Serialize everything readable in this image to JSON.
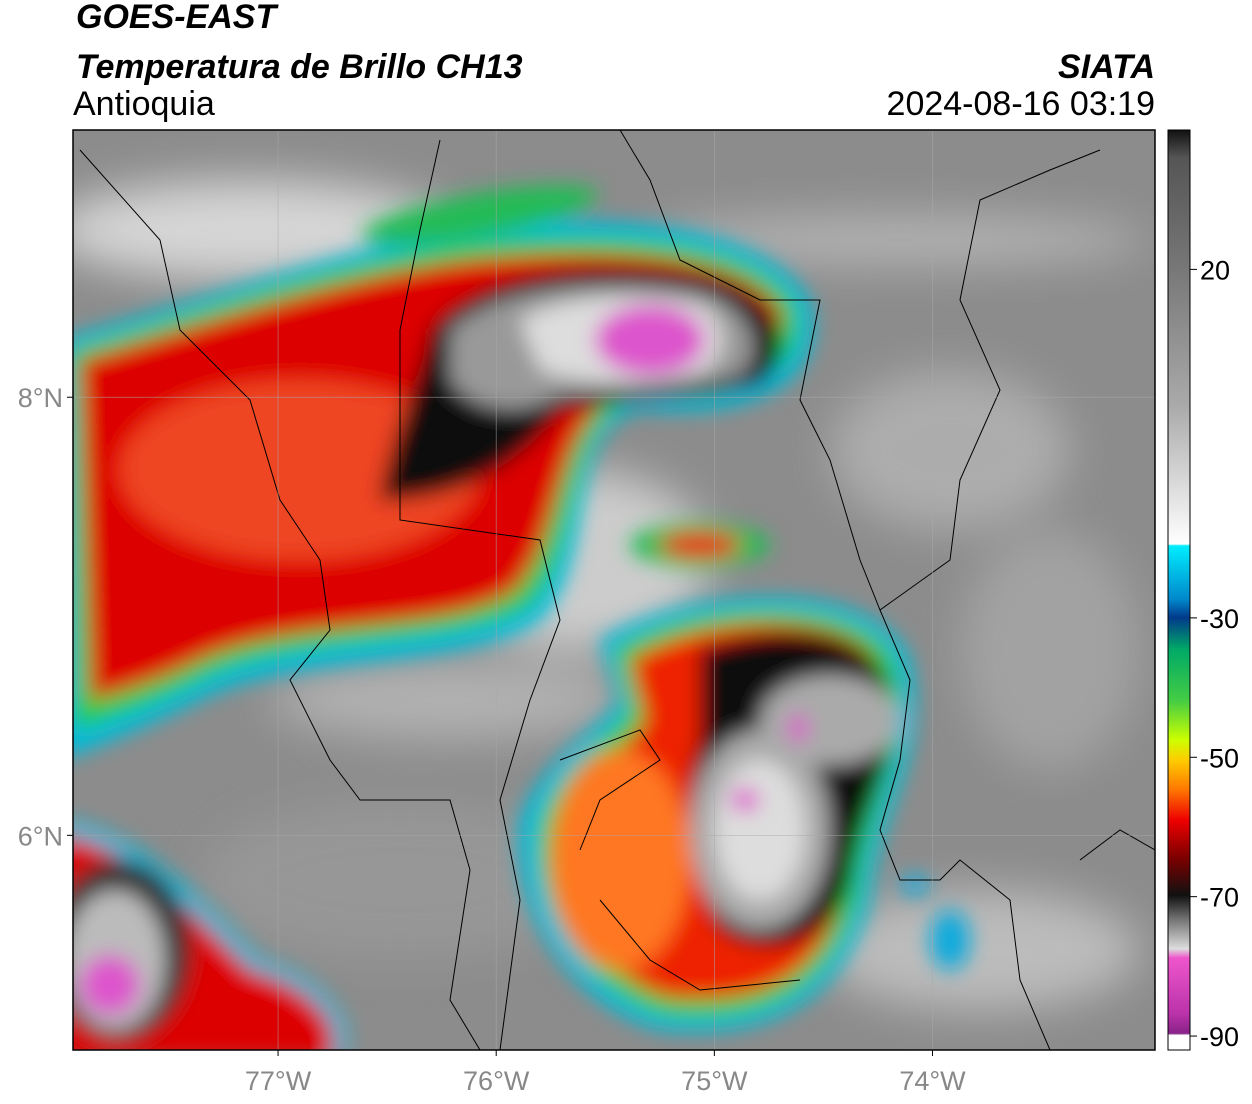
{
  "header": {
    "title": "GOES-EAST",
    "subtitle": "Temperatura de Brillo CH13",
    "region": "Antioquia",
    "source": "SIATA",
    "datetime": "2024-08-16 03:19"
  },
  "map": {
    "xlim": [
      -77.94,
      -72.98
    ],
    "ylim": [
      5.02,
      9.22
    ],
    "xticks": [
      {
        "value": -77,
        "label": "77°W"
      },
      {
        "value": -76,
        "label": "76°W"
      },
      {
        "value": -75,
        "label": "75°W"
      },
      {
        "value": -74,
        "label": "74°W"
      }
    ],
    "yticks": [
      {
        "value": 8,
        "label": "8°N"
      },
      {
        "value": 6,
        "label": "6°N"
      }
    ]
  },
  "colorbar": {
    "lim": [
      -92,
      40
    ],
    "ticks": [
      20,
      -30,
      -50,
      -70,
      -90
    ]
  }
}
